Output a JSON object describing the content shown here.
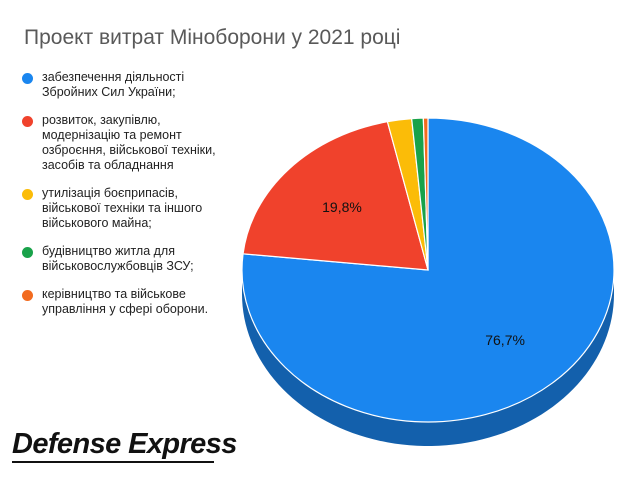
{
  "chart_data": {
    "type": "pie",
    "title": "Проект витрат Міноборони у 2021 році",
    "slices": [
      {
        "label": "забезпечення діяльності\nЗбройних Сил України;",
        "value": 76.7,
        "data_label": "76,7%",
        "color": "#1a86ef"
      },
      {
        "label": "розвиток, закупівлю,\nмодернізацію та ремонт\nозброєння, військової техніки,\nзасобів та обладнання",
        "value": 19.8,
        "data_label": "19,8%",
        "color": "#f0422c"
      },
      {
        "label": "утилізація боєприпасів,\nвійськової техніки та іншого\nвійськового майна;",
        "value": 2.1,
        "color": "#fbbc08"
      },
      {
        "label": "будівництво житла для\nвійськовослужбовців ЗСУ;",
        "value": 1.0,
        "color": "#19a24a"
      },
      {
        "label": "керівництво та військове\nуправління у сфері оборони.",
        "value": 0.4,
        "color": "#f26b1f"
      }
    ],
    "legend_position": "left"
  },
  "logo_text": "Defense Express"
}
